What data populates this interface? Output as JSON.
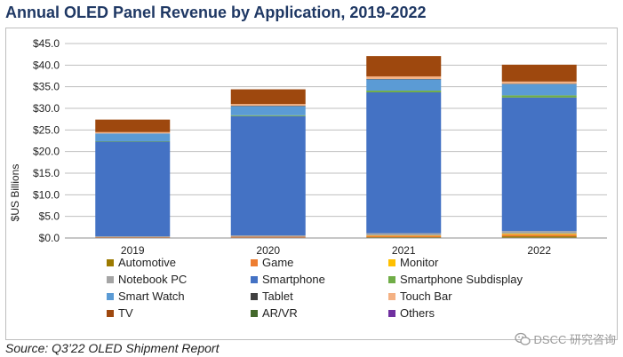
{
  "title": "Annual OLED Panel Revenue by Application, 2019-2022",
  "source": "Source: Q3’22 OLED Shipment Report",
  "watermark": "DSCC 研究咨询",
  "chart_data": {
    "type": "bar",
    "stacked": true,
    "title": "Annual OLED Panel Revenue by Application, 2019-2022",
    "ylabel": "$US Billions",
    "xlabel": "",
    "categories": [
      "2019",
      "2020",
      "2021",
      "2022"
    ],
    "ylim": [
      0,
      45
    ],
    "yticks": [
      0,
      5,
      10,
      15,
      20,
      25,
      30,
      35,
      40,
      45
    ],
    "ytick_labels": [
      "$0.0",
      "$5.0",
      "$10.0",
      "$15.0",
      "$20.0",
      "$25.0",
      "$30.0",
      "$35.0",
      "$40.0",
      "$45.0"
    ],
    "grid": true,
    "legend_position": "bottom",
    "series": [
      {
        "name": "Automotive",
        "color": "#9c7a00",
        "values": [
          0.1,
          0.1,
          0.2,
          0.4
        ]
      },
      {
        "name": "Game",
        "color": "#ed7d31",
        "values": [
          0.1,
          0.2,
          0.3,
          0.4
        ]
      },
      {
        "name": "Monitor",
        "color": "#ffc000",
        "values": [
          0.0,
          0.0,
          0.1,
          0.2
        ]
      },
      {
        "name": "Notebook PC",
        "color": "#a5a5a5",
        "values": [
          0.2,
          0.3,
          0.5,
          0.6
        ]
      },
      {
        "name": "Smartphone",
        "color": "#4472c4",
        "values": [
          21.9,
          27.6,
          32.6,
          30.9
        ]
      },
      {
        "name": "Smartphone Subdisplay",
        "color": "#70ad47",
        "values": [
          0.1,
          0.2,
          0.4,
          0.5
        ]
      },
      {
        "name": "Smart Watch",
        "color": "#5b9bd5",
        "values": [
          1.8,
          2.1,
          2.6,
          2.6
        ]
      },
      {
        "name": "Tablet",
        "color": "#404040",
        "values": [
          0.0,
          0.1,
          0.1,
          0.1
        ]
      },
      {
        "name": "Touch Bar",
        "color": "#f4b183",
        "values": [
          0.3,
          0.4,
          0.6,
          0.5
        ]
      },
      {
        "name": "TV",
        "color": "#9e480e",
        "values": [
          2.9,
          3.4,
          4.7,
          3.9
        ]
      },
      {
        "name": "AR/VR",
        "color": "#43682b",
        "values": [
          0.0,
          0.0,
          0.0,
          0.0
        ]
      },
      {
        "name": "Others",
        "color": "#7030a0",
        "values": [
          0.0,
          0.0,
          0.0,
          0.0
        ]
      }
    ]
  },
  "colors": {
    "title": "#1f3864",
    "grid": "#bfbfbf",
    "frame": "#bdbdbd"
  }
}
